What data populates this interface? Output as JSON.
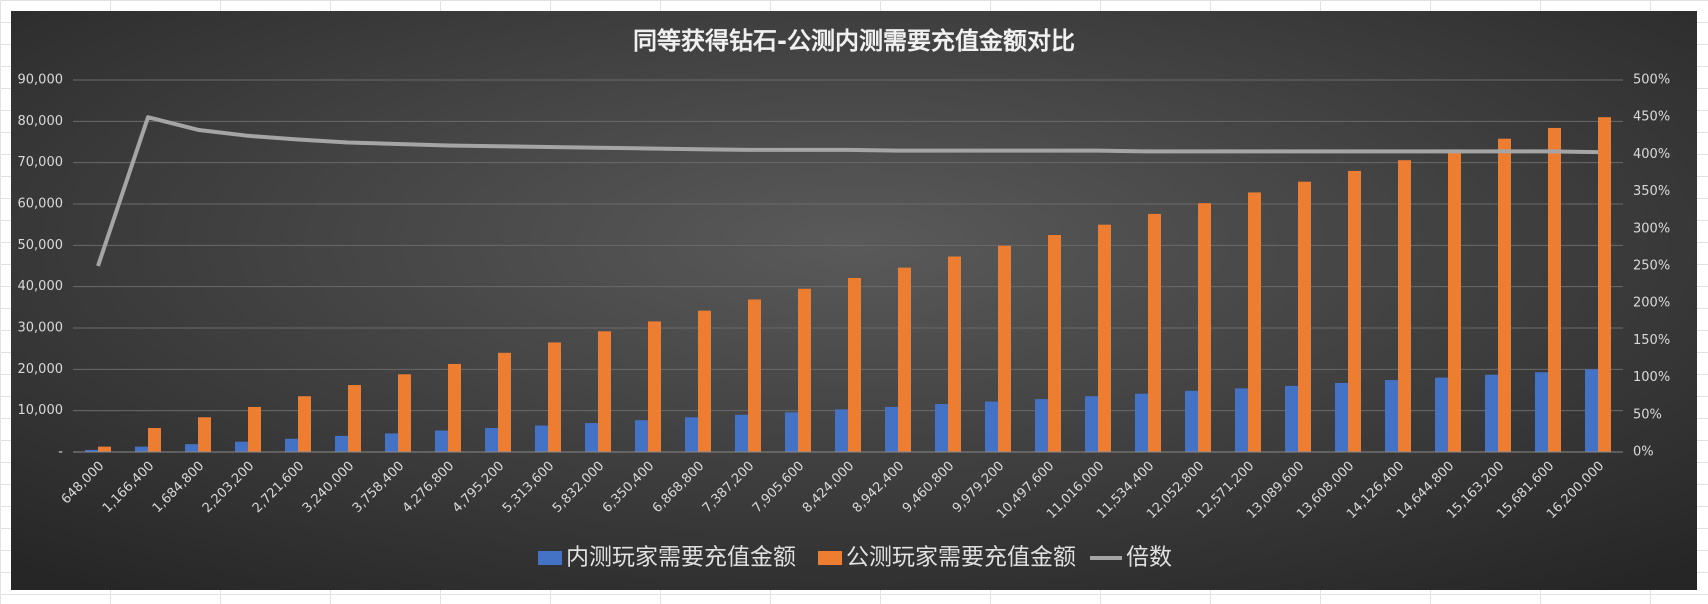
{
  "chart_data": {
    "type": "bar",
    "title": "同等获得钻石-公测内测需要充值金额对比",
    "categories": [
      "648,000",
      "1,166,400",
      "1,684,800",
      "2,203,200",
      "2,721,600",
      "3,240,000",
      "3,758,400",
      "4,276,800",
      "4,795,200",
      "5,313,600",
      "5,832,000",
      "6,350,400",
      "6,868,800",
      "7,387,200",
      "7,905,600",
      "8,424,000",
      "8,942,400",
      "9,460,800",
      "9,979,200",
      "10,497,600",
      "11,016,000",
      "11,534,400",
      "12,052,800",
      "12,571,200",
      "13,089,600",
      "13,608,000",
      "14,126,400",
      "14,644,800",
      "15,163,200",
      "15,681,600",
      "16,200,000"
    ],
    "series": [
      {
        "name": "内测玩家需要充值金额",
        "color": "#4472c4",
        "type": "bar",
        "values": [
          500,
          1300,
          1900,
          2500,
          3200,
          3900,
          4500,
          5200,
          5800,
          6400,
          7000,
          7700,
          8400,
          9000,
          9600,
          10300,
          10900,
          11600,
          12200,
          12800,
          13500,
          14100,
          14800,
          15400,
          16000,
          16700,
          17400,
          18000,
          18700,
          19300,
          20000
        ]
      },
      {
        "name": "公测玩家需要充值金额",
        "color": "#ed7d31",
        "type": "bar",
        "values": [
          1300,
          5800,
          8400,
          10900,
          13500,
          16200,
          18800,
          21300,
          24000,
          26500,
          29200,
          31600,
          34200,
          36900,
          39500,
          42100,
          44600,
          47300,
          49900,
          52500,
          55000,
          57600,
          60200,
          62800,
          65400,
          68000,
          70600,
          73200,
          75800,
          78400,
          81000
        ]
      },
      {
        "name": "倍数",
        "color": "#a5a5a5",
        "type": "line",
        "axis": "y2",
        "values": [
          250,
          450,
          433,
          425,
          420,
          416,
          414,
          412,
          411,
          410,
          409,
          408,
          407,
          406,
          406,
          406,
          405,
          405,
          405,
          405,
          405,
          404,
          404,
          404,
          404,
          404,
          404,
          404,
          404,
          404,
          403
        ]
      }
    ],
    "ylim": [
      0,
      90000
    ],
    "yticks": [
      {
        "value": 0,
        "label": "-"
      },
      {
        "value": 10000,
        "label": "10,000"
      },
      {
        "value": 20000,
        "label": "20,000"
      },
      {
        "value": 30000,
        "label": "30,000"
      },
      {
        "value": 40000,
        "label": "40,000"
      },
      {
        "value": 50000,
        "label": "50,000"
      },
      {
        "value": 60000,
        "label": "60,000"
      },
      {
        "value": 70000,
        "label": "70,000"
      },
      {
        "value": 80000,
        "label": "80,000"
      },
      {
        "value": 90000,
        "label": "90,000"
      }
    ],
    "y2lim": [
      0,
      500
    ],
    "y2ticks": [
      {
        "value": 0,
        "label": "0%"
      },
      {
        "value": 50,
        "label": "50%"
      },
      {
        "value": 100,
        "label": "100%"
      },
      {
        "value": 150,
        "label": "150%"
      },
      {
        "value": 200,
        "label": "200%"
      },
      {
        "value": 250,
        "label": "250%"
      },
      {
        "value": 300,
        "label": "300%"
      },
      {
        "value": 350,
        "label": "350%"
      },
      {
        "value": 400,
        "label": "400%"
      },
      {
        "value": 450,
        "label": "450%"
      },
      {
        "value": 500,
        "label": "500%"
      }
    ],
    "grid": true,
    "legend": "bottom"
  }
}
